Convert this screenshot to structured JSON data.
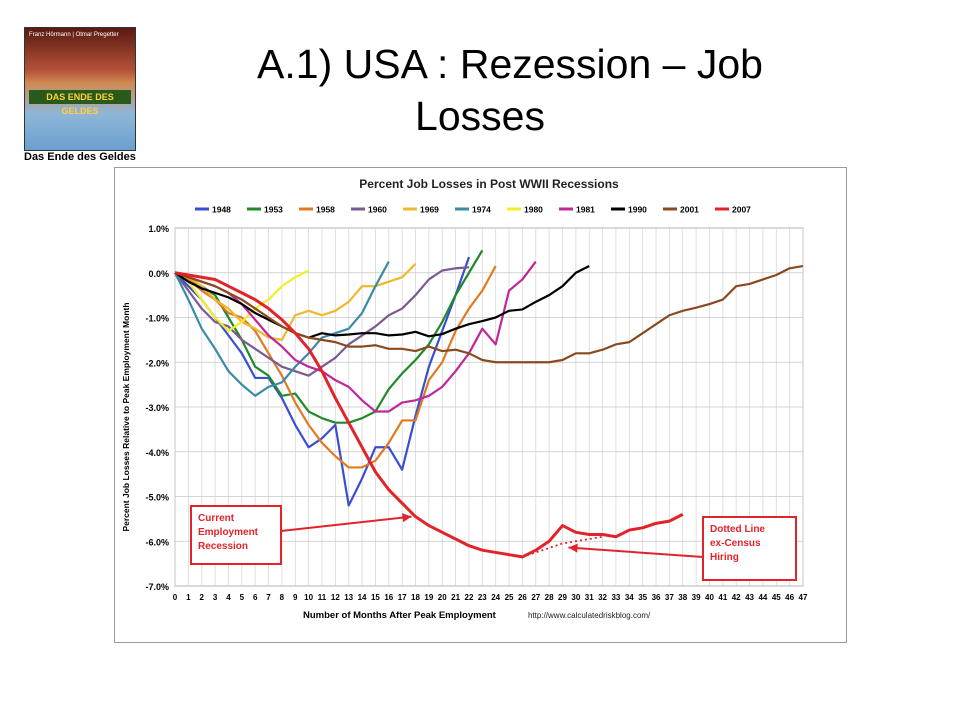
{
  "slide": {
    "title_line1": "A.1)  USA : Rezession – Job",
    "title_line2": "Losses"
  },
  "book": {
    "band_text": "DAS ENDE DES GELDES",
    "top_text": "Franz Hörmann | Otmar Pregetter",
    "caption": "Das Ende des Geldes"
  },
  "chart_data": {
    "type": "line",
    "title": "Percent Job Losses in Post WWII Recessions",
    "xlabel": "Number of Months After Peak Employment",
    "ylabel": "Percent Job Losses Relative to Peak Employment Month",
    "source": "http://www.calculatedriskblog.com/",
    "xlim": [
      0,
      47
    ],
    "ylim": [
      -7.0,
      1.0
    ],
    "x_ticks": [
      0,
      1,
      2,
      3,
      4,
      5,
      6,
      7,
      8,
      9,
      10,
      11,
      12,
      13,
      14,
      15,
      16,
      17,
      18,
      19,
      20,
      21,
      22,
      23,
      24,
      25,
      26,
      27,
      28,
      29,
      30,
      31,
      32,
      33,
      34,
      35,
      36,
      37,
      38,
      39,
      40,
      41,
      42,
      43,
      44,
      45,
      46,
      47
    ],
    "y_ticks": [
      "1.0%",
      "0.0%",
      "-1.0%",
      "-2.0%",
      "-3.0%",
      "-4.0%",
      "-5.0%",
      "-6.0%",
      "-7.0%"
    ],
    "grid": true,
    "legend_position": "top",
    "series": [
      {
        "name": "1948",
        "color": "#3a4fcf",
        "values": [
          0,
          -0.3,
          -0.6,
          -1.0,
          -1.4,
          -1.8,
          -2.35,
          -2.35,
          -2.8,
          -3.4,
          -3.9,
          -3.7,
          -3.4,
          -5.2,
          -4.6,
          -3.9,
          -3.9,
          -4.4,
          -3.2,
          -2.1,
          -1.3,
          -0.5,
          0.35
        ]
      },
      {
        "name": "1953",
        "color": "#1f8a2a",
        "values": [
          0,
          -0.15,
          -0.3,
          -0.5,
          -1.0,
          -1.5,
          -2.1,
          -2.3,
          -2.75,
          -2.7,
          -3.1,
          -3.25,
          -3.35,
          -3.35,
          -3.25,
          -3.1,
          -2.6,
          -2.25,
          -1.95,
          -1.6,
          -1.1,
          -0.5,
          0.0,
          0.5
        ]
      },
      {
        "name": "1958",
        "color": "#e07a22",
        "values": [
          0,
          -0.15,
          -0.4,
          -0.6,
          -0.9,
          -1.0,
          -1.3,
          -1.8,
          -2.3,
          -2.9,
          -3.4,
          -3.8,
          -4.1,
          -4.35,
          -4.35,
          -4.2,
          -3.8,
          -3.3,
          -3.3,
          -2.4,
          -2.0,
          -1.3,
          -0.8,
          -0.4,
          0.15
        ]
      },
      {
        "name": "1960",
        "color": "#7a5a92",
        "values": [
          0,
          -0.4,
          -0.8,
          -1.1,
          -1.2,
          -1.5,
          -1.7,
          -1.9,
          -2.1,
          -2.2,
          -2.3,
          -2.1,
          -1.9,
          -1.6,
          -1.4,
          -1.2,
          -0.95,
          -0.8,
          -0.5,
          -0.15,
          0.05,
          0.1,
          0.12
        ]
      },
      {
        "name": "1969",
        "color": "#f0b82a",
        "values": [
          0,
          -0.1,
          -0.3,
          -0.6,
          -0.8,
          -1.1,
          -1.25,
          -1.45,
          -1.5,
          -0.95,
          -0.85,
          -0.95,
          -0.85,
          -0.65,
          -0.3,
          -0.3,
          -0.2,
          -0.1,
          0.2
        ]
      },
      {
        "name": "1974",
        "color": "#3a8aa8",
        "values": [
          0,
          -0.6,
          -1.25,
          -1.7,
          -2.2,
          -2.5,
          -2.75,
          -2.55,
          -2.45,
          -2.1,
          -1.8,
          -1.45,
          -1.35,
          -1.25,
          -0.9,
          -0.3,
          0.25
        ]
      },
      {
        "name": "1980",
        "color": "#f2ee2a",
        "values": [
          0,
          -0.2,
          -0.6,
          -1.0,
          -1.3,
          -1.1,
          -0.8,
          -0.6,
          -0.3,
          -0.1,
          0.05
        ]
      },
      {
        "name": "1981",
        "color": "#c0279a",
        "values": [
          0,
          -0.1,
          -0.2,
          -0.3,
          -0.45,
          -0.7,
          -1.05,
          -1.4,
          -1.65,
          -1.95,
          -2.1,
          -2.2,
          -2.4,
          -2.55,
          -2.85,
          -3.1,
          -3.1,
          -2.9,
          -2.85,
          -2.75,
          -2.55,
          -2.2,
          -1.8,
          -1.25,
          -1.6,
          -0.4,
          -0.15,
          0.25
        ]
      },
      {
        "name": "1990",
        "color": "#000000",
        "values": [
          0,
          -0.2,
          -0.35,
          -0.45,
          -0.55,
          -0.7,
          -0.9,
          -1.05,
          -1.2,
          -1.35,
          -1.45,
          -1.35,
          -1.4,
          -1.38,
          -1.35,
          -1.35,
          -1.4,
          -1.38,
          -1.32,
          -1.42,
          -1.37,
          -1.25,
          -1.15,
          -1.08,
          -1.0,
          -0.85,
          -0.82,
          -0.65,
          -0.5,
          -0.3,
          0.0,
          0.15
        ]
      },
      {
        "name": "2001",
        "color": "#8a4a1f",
        "values": [
          0,
          -0.1,
          -0.2,
          -0.3,
          -0.45,
          -0.6,
          -0.8,
          -1.0,
          -1.2,
          -1.35,
          -1.45,
          -1.5,
          -1.55,
          -1.65,
          -1.65,
          -1.62,
          -1.7,
          -1.7,
          -1.75,
          -1.65,
          -1.75,
          -1.72,
          -1.8,
          -1.95,
          -2.0,
          -2.0,
          -2.0,
          -2.0,
          -2.0,
          -1.95,
          -1.8,
          -1.8,
          -1.72,
          -1.6,
          -1.55,
          -1.35,
          -1.15,
          -0.95,
          -0.85,
          -0.78,
          -0.7,
          -0.6,
          -0.3,
          -0.25,
          -0.15,
          -0.05,
          0.1,
          0.15
        ]
      },
      {
        "name": "2007",
        "color": "#e2232a",
        "values": [
          0,
          -0.05,
          -0.1,
          -0.15,
          -0.3,
          -0.45,
          -0.6,
          -0.8,
          -1.05,
          -1.35,
          -1.7,
          -2.2,
          -2.8,
          -3.35,
          -3.9,
          -4.45,
          -4.85,
          -5.15,
          -5.45,
          -5.65,
          -5.8,
          -5.95,
          -6.1,
          -6.2,
          -6.25,
          -6.3,
          -6.35,
          -6.2,
          -6.0,
          -5.65,
          -5.8,
          -5.85,
          -5.85,
          -5.9,
          -5.75,
          -5.7,
          -5.6,
          -5.55,
          -5.4
        ]
      }
    ],
    "dotted_series": {
      "name": "2007 ex-Census",
      "color": "#e2232a",
      "x": [
        26,
        27,
        28,
        29,
        30,
        31,
        32
      ],
      "values": [
        -6.35,
        -6.25,
        -6.15,
        -6.05,
        -6.0,
        -5.95,
        -5.9
      ]
    },
    "annotations": [
      {
        "text_lines": [
          "Current",
          "Employment",
          "Recession"
        ],
        "target_x": 18,
        "target_y": -5.45
      },
      {
        "text_lines": [
          "Dotted Line",
          "ex-Census",
          "Hiring"
        ],
        "target_x": 29,
        "target_y": -6.05
      }
    ]
  }
}
